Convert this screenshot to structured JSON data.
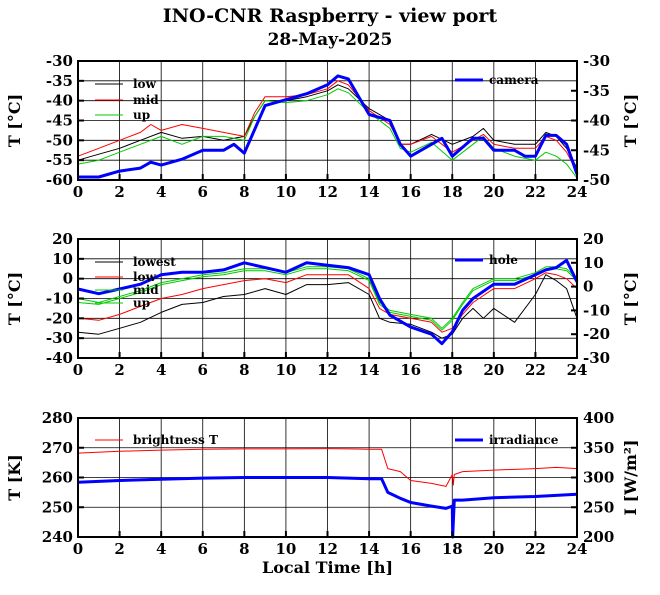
{
  "title": "INO-CNR Raspberry - view port",
  "subtitle": "28-May-2025",
  "chart_data": [
    {
      "type": "line",
      "xlabel": "",
      "ylabel": "T [°C]",
      "ylabel_right": "T [°C]",
      "xlim": [
        0,
        24
      ],
      "x_ticks": [
        0,
        2,
        4,
        6,
        8,
        10,
        12,
        14,
        16,
        18,
        20,
        22,
        24
      ],
      "ylim": [
        -60,
        -30
      ],
      "y_ticks": [
        -60,
        -55,
        -50,
        -45,
        -40,
        -35,
        -30
      ],
      "ylim_right": [
        -50,
        -30
      ],
      "y_ticks_right": [
        -50,
        -45,
        -40,
        -35,
        -30
      ],
      "grid": true,
      "legend_left": "top-left",
      "legend_right": "top-right",
      "series": [
        {
          "name": "low",
          "color": "#000000",
          "axis": "left",
          "x": [
            0,
            1,
            2,
            3,
            4,
            5,
            6,
            7,
            8,
            8.5,
            9,
            10,
            11,
            12,
            12.5,
            13,
            14,
            15,
            15.5,
            16,
            17,
            18,
            19,
            19.5,
            20,
            21,
            22,
            22.5,
            23,
            23.5,
            24
          ],
          "values": [
            -55,
            -53.5,
            -52,
            -50,
            -48,
            -49.5,
            -49,
            -50,
            -49,
            -44,
            -40,
            -40,
            -39,
            -37.5,
            -36,
            -37,
            -42,
            -45,
            -51,
            -51,
            -48.5,
            -51,
            -49,
            -47,
            -50,
            -51,
            -51,
            -48,
            -49,
            -52,
            -57
          ]
        },
        {
          "name": "mid",
          "color": "#ff0000",
          "axis": "left",
          "x": [
            0,
            1,
            2,
            3,
            3.5,
            4,
            5,
            6,
            7,
            8,
            8.5,
            9,
            10,
            11,
            12,
            12.5,
            13,
            14,
            15,
            15.5,
            16,
            17,
            18,
            19,
            19.5,
            20,
            21,
            22,
            22.5,
            23,
            23.5,
            24
          ],
          "values": [
            -54,
            -52,
            -50,
            -48,
            -46,
            -47.5,
            -46,
            -47,
            -48,
            -49,
            -43,
            -39,
            -39,
            -38.5,
            -37,
            -35,
            -36,
            -42.5,
            -46,
            -51,
            -51,
            -49,
            -53,
            -50,
            -48.5,
            -51,
            -52,
            -52,
            -49,
            -50,
            -53,
            -58
          ]
        },
        {
          "name": "up",
          "color": "#00cc00",
          "axis": "left",
          "x": [
            0,
            1,
            2,
            3,
            4,
            5,
            6,
            7,
            8,
            8.5,
            9,
            10,
            11,
            12,
            12.5,
            13,
            14,
            15,
            15.5,
            16,
            17,
            18,
            19,
            19.5,
            20,
            21,
            22,
            22.5,
            23,
            23.5,
            24
          ],
          "values": [
            -56,
            -55,
            -53,
            -51,
            -49,
            -51,
            -49,
            -49,
            -50,
            -44,
            -40,
            -40.5,
            -40,
            -38.5,
            -37,
            -38,
            -43,
            -47,
            -52,
            -53,
            -50.5,
            -55,
            -51,
            -49,
            -52,
            -54,
            -55,
            -53,
            -54,
            -56,
            -59.5
          ]
        },
        {
          "name": "camera",
          "color": "#0000ff",
          "axis": "right",
          "x": [
            0,
            1,
            2,
            3,
            3.5,
            4,
            5,
            6,
            7,
            7.5,
            8,
            8.5,
            9,
            10,
            11,
            12,
            12.5,
            13,
            13.5,
            14,
            15,
            15.5,
            16,
            17,
            17.5,
            18,
            19,
            19.5,
            20,
            21,
            21.5,
            22,
            22.5,
            23,
            23.5,
            24
          ],
          "values": [
            -49.5,
            -49.5,
            -48.5,
            -48,
            -47,
            -47.5,
            -46.5,
            -45,
            -45,
            -44,
            -45.5,
            -41.5,
            -37.5,
            -36.5,
            -35.5,
            -34,
            -32.5,
            -33,
            -36,
            -39,
            -40,
            -44,
            -46,
            -44,
            -43,
            -46,
            -43,
            -43,
            -45,
            -45,
            -46,
            -46,
            -42.5,
            -42.5,
            -44,
            -49
          ]
        }
      ]
    },
    {
      "type": "line",
      "xlabel": "",
      "ylabel": "T [°C]",
      "ylabel_right": "T [°C]",
      "xlim": [
        0,
        24
      ],
      "x_ticks": [
        0,
        2,
        4,
        6,
        8,
        10,
        12,
        14,
        16,
        18,
        20,
        22,
        24
      ],
      "ylim": [
        -40,
        20
      ],
      "y_ticks": [
        -40,
        -30,
        -20,
        -10,
        0,
        10,
        20
      ],
      "ylim_right": [
        -30,
        20
      ],
      "y_ticks_right": [
        -30,
        -20,
        -10,
        0,
        10,
        20
      ],
      "grid": true,
      "legend_left": "top-left",
      "legend_right": "top-right",
      "series": [
        {
          "name": "lowest",
          "color": "#000000",
          "axis": "left",
          "x": [
            0,
            1,
            2,
            3,
            4,
            5,
            6,
            7,
            8,
            9,
            10,
            11,
            12,
            13,
            14,
            14.5,
            15,
            16,
            17,
            17.5,
            18,
            18.5,
            19,
            19.5,
            20,
            21,
            22,
            22.5,
            23,
            23.5,
            24
          ],
          "values": [
            -27,
            -28,
            -25,
            -22,
            -17,
            -13,
            -12,
            -9,
            -8,
            -5,
            -8,
            -3,
            -3,
            -2,
            -8,
            -20,
            -22,
            -23,
            -27,
            -30,
            -28,
            -20,
            -15,
            -20,
            -15,
            -22,
            -8,
            2,
            -1,
            -5,
            -20
          ]
        },
        {
          "name": "low",
          "color": "#ff0000",
          "axis": "left",
          "x": [
            0,
            1,
            2,
            3,
            4,
            5,
            6,
            7,
            8,
            9,
            10,
            11,
            12,
            13,
            14,
            14.5,
            15,
            16,
            17,
            17.5,
            18,
            18.5,
            19,
            20,
            21,
            22,
            22.5,
            23,
            23.5,
            24
          ],
          "values": [
            -20,
            -21,
            -18,
            -14,
            -10,
            -8,
            -5,
            -3,
            -1,
            0,
            -2,
            2,
            2,
            2,
            -5,
            -15,
            -18,
            -20,
            -22,
            -27,
            -25,
            -18,
            -12,
            -5,
            -5,
            0,
            3,
            2,
            0,
            -5
          ]
        },
        {
          "name": "mid",
          "color": "#00cc00",
          "axis": "left",
          "x": [
            0,
            1,
            2,
            3,
            4,
            5,
            6,
            7,
            8,
            9,
            10,
            11,
            12,
            13,
            14,
            14.5,
            15,
            16,
            17,
            17.5,
            18,
            18.5,
            19,
            20,
            21,
            22,
            22.5,
            23,
            23.5,
            24
          ],
          "values": [
            -10,
            -12,
            -9,
            -6,
            -2,
            0,
            2,
            3,
            5,
            5,
            3,
            6,
            6,
            5,
            0,
            -12,
            -16,
            -18,
            -20,
            -25,
            -20,
            -12,
            -5,
            0,
            0,
            3,
            6,
            6,
            5,
            0
          ]
        },
        {
          "name": "up",
          "color": "#00cc00",
          "axis": "left",
          "x": [
            0,
            1,
            2,
            3,
            4,
            5,
            6,
            7,
            8,
            9,
            10,
            11,
            12,
            13,
            14,
            14.5,
            15,
            16,
            17,
            17.5,
            18,
            18.5,
            19,
            20,
            21,
            22,
            22.5,
            23,
            23.5,
            24
          ],
          "values": [
            -12,
            -13,
            -10,
            -7,
            -3,
            -1,
            1,
            2,
            4,
            4,
            2,
            5,
            5,
            4,
            -1,
            -13,
            -17,
            -19,
            -21,
            -26,
            -21,
            -13,
            -6,
            -1,
            -1,
            2,
            5,
            5,
            4,
            -1
          ]
        },
        {
          "name": "hole",
          "color": "#0000ff",
          "axis": "right",
          "x": [
            0,
            1,
            2,
            3,
            4,
            5,
            6,
            7,
            8,
            9,
            10,
            11,
            12,
            13,
            14,
            14.5,
            15,
            16,
            17,
            17.5,
            18,
            18.5,
            19,
            20,
            21,
            22,
            22.5,
            23,
            23.5,
            24
          ],
          "values": [
            -1,
            -3,
            -1,
            1,
            5,
            6,
            6,
            7,
            10,
            8,
            6,
            10,
            9,
            8,
            5,
            -5,
            -12,
            -17,
            -20,
            -24,
            -19,
            -10,
            -5,
            1,
            1,
            5,
            7,
            8,
            11,
            2
          ]
        }
      ]
    },
    {
      "type": "line",
      "xlabel": "Local Time [h]",
      "ylabel": "T [K]",
      "ylabel_right": "I [W/m²]",
      "xlim": [
        0,
        24
      ],
      "x_ticks": [
        0,
        2,
        4,
        6,
        8,
        10,
        12,
        14,
        16,
        18,
        20,
        22,
        24
      ],
      "ylim": [
        240,
        280
      ],
      "y_ticks": [
        240,
        250,
        260,
        270,
        280
      ],
      "ylim_right": [
        200,
        400
      ],
      "y_ticks_right": [
        200,
        250,
        300,
        350,
        400
      ],
      "grid": true,
      "legend_left": "top-left",
      "legend_right": "top-right",
      "series": [
        {
          "name": "brightness T",
          "color": "#ff0000",
          "axis": "left",
          "x": [
            0,
            2,
            4,
            6,
            8,
            10,
            12,
            13,
            14,
            14.6,
            14.9,
            15.5,
            16,
            17,
            17.7,
            18,
            18.05,
            18.1,
            18.5,
            20,
            22,
            23,
            24
          ],
          "values": [
            268.2,
            268.8,
            269.2,
            269.5,
            269.6,
            269.6,
            269.7,
            269.6,
            269.5,
            269.5,
            263,
            262,
            259,
            258,
            257,
            261,
            257.5,
            261,
            262,
            262.5,
            263,
            263.4,
            263
          ]
        },
        {
          "name": "irradiance",
          "color": "#0000ff",
          "axis": "right",
          "x": [
            0,
            2,
            4,
            6,
            8,
            10,
            12,
            13,
            14,
            14.6,
            14.9,
            15.5,
            16,
            17,
            17.7,
            18,
            18.02,
            18.05,
            18.1,
            18.5,
            20,
            22,
            23,
            24
          ],
          "values": [
            292,
            295,
            297,
            299,
            300,
            300,
            300,
            299,
            298,
            298,
            275,
            265,
            258,
            252,
            248,
            252,
            200,
            225,
            262,
            262,
            266,
            268,
            270,
            272
          ]
        }
      ]
    }
  ]
}
